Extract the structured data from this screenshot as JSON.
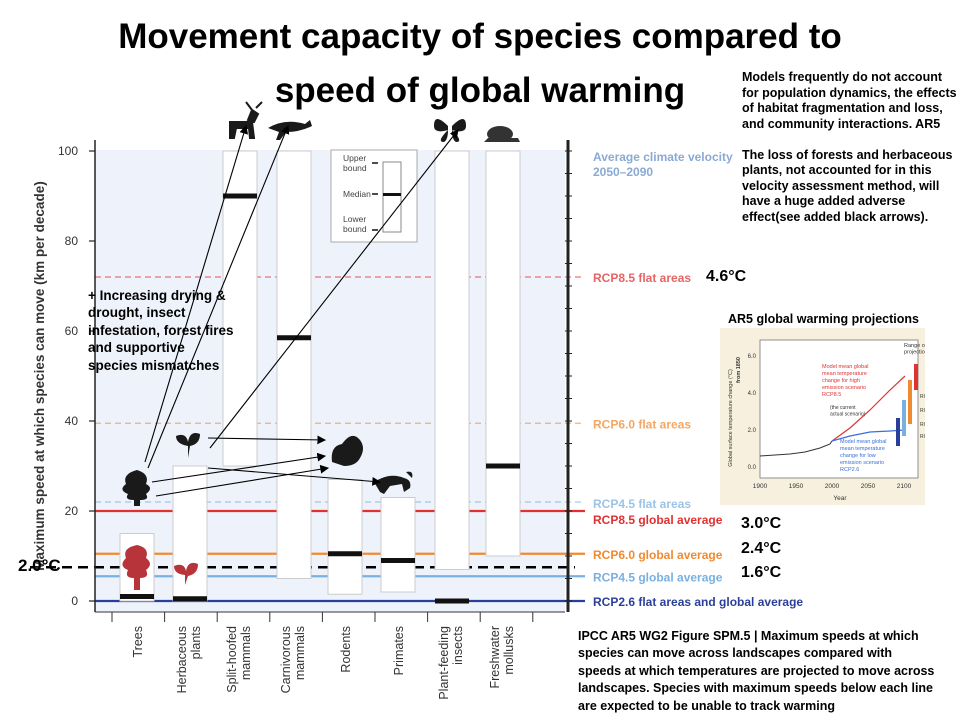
{
  "title": "Movement capacity of species compared to\nspeed of global warming",
  "side_note": "Models frequently do not account for  population dynamics, the effects of habitat fragmentation and loss, and community interactions. AR5\n\nThe loss of forests and herbaceous plants, not accounted for in this velocity assessment method, will have a huge added adverse effect(see added black arrows).",
  "left_note": "+ Increasing drying & drought, insect infestation, forest fires and supportive species mismatches",
  "caption": "IPCC AR5 WG2 Figure SPM.5 | Maximum speeds at which species can move across landscapes compared with speeds at which temperatures are projected to move across landscapes. Species with maximum speeds below each line are expected to be unable to track warming",
  "temp_labels": {
    "t46": "4.6°C",
    "t30": "3.0°C",
    "t24": "2.4°C",
    "t16": "1.6°C",
    "t20": "2.0°C"
  },
  "inset_title": "AR5 global warming projections",
  "colors": {
    "rcp85": "#e03030",
    "rcp60": "#f08a30",
    "rcp45": "#7ab0e0",
    "rcp26": "#2a3f9a",
    "bg_band": "#eef2fb"
  },
  "chart_data": {
    "type": "bar",
    "ylabel": "Maximum speed at which species can move (km per decade)",
    "ylim": [
      0,
      100
    ],
    "yticks": [
      0,
      20,
      40,
      60,
      80,
      100
    ],
    "categories": [
      "Trees",
      "Herbaceous plants",
      "Split-hoofed mammals",
      "Carnivorous mammals",
      "Rodents",
      "Primates",
      "Plant-feeding insects",
      "Freshwater mollusks"
    ],
    "series": [
      {
        "name": "Upper bound",
        "values": [
          15,
          30,
          100,
          100,
          27,
          23,
          100,
          100
        ]
      },
      {
        "name": "Median",
        "values": [
          1,
          0.5,
          90,
          58.5,
          10.5,
          9,
          0,
          30
        ]
      },
      {
        "name": "Lower bound",
        "values": [
          0,
          0,
          30,
          5,
          1.5,
          2,
          7,
          10
        ]
      }
    ],
    "reference_lines": [
      {
        "label": "Average climate velocity\n2050–2090",
        "value": 100,
        "style": "band"
      },
      {
        "label": "RCP8.5 flat areas",
        "value": 72,
        "style": "dashed",
        "color": "#e03030"
      },
      {
        "label": "RCP6.0 flat areas",
        "value": 39.5,
        "style": "dashed",
        "color": "#f08a30"
      },
      {
        "label": "RCP4.5 flat areas",
        "value": 22,
        "style": "dashed",
        "color": "#7ab0e0"
      },
      {
        "label": "RCP8.5 global average",
        "value": 20,
        "style": "solid",
        "color": "#e03030"
      },
      {
        "label": "RCP6.0 global average",
        "value": 10.5,
        "style": "solid",
        "color": "#f08a30"
      },
      {
        "label": "RCP4.5 global average",
        "value": 5.5,
        "style": "solid",
        "color": "#7ab0e0"
      },
      {
        "label": "RCP2.6  flat areas and global average",
        "value": 0,
        "style": "solid",
        "color": "#2a3f9a"
      },
      {
        "label": "",
        "value": 7.5,
        "style": "dashed-black",
        "color": "#000000"
      }
    ],
    "legend": {
      "upper": "Upper\nbound",
      "median": "Median",
      "lower": "Lower\nbound"
    }
  },
  "inset_chart": {
    "type": "line",
    "xlabel": "Year",
    "ylabel": "Global surface temperature change (°C)",
    "ylabel2": "from 1850",
    "xticks": [
      1900,
      1950,
      2000,
      2050,
      2100
    ],
    "yticks": [
      "6.0",
      "4.0",
      "2.0",
      "0.0"
    ],
    "range_label": "Range of\nprojections",
    "high_label": "Model mean global\nmean temperature\nchange for high\nemission scenario\nRCP8.5",
    "current_label": "(the current\nactual scenario)",
    "low_label": "Model mean global\nmean temperature\nchange for low\nemission scenario\nRCP2.6",
    "bar_labels": [
      "RCP8.5",
      "RCP6.0",
      "RCP4.5",
      "RCP2.6"
    ]
  }
}
